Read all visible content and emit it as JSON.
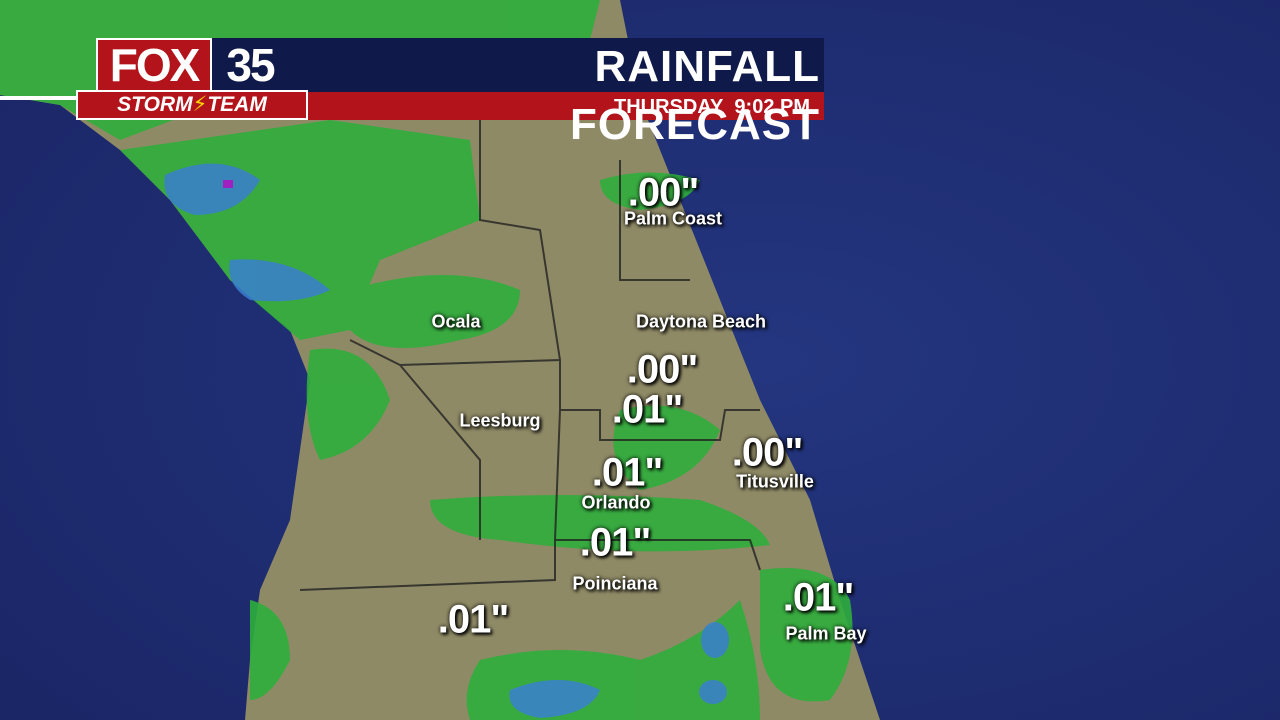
{
  "header": {
    "logo_brand": "FOX",
    "logo_number": "35",
    "logo_team": [
      "STORM",
      "TEAM"
    ],
    "title": "RAINFALL FORECAST",
    "day": "THURSDAY",
    "time": "9:02 PM"
  },
  "places": [
    {
      "amount": ".00\"",
      "name": "Palm Coast"
    },
    {
      "name": "Daytona Beach"
    },
    {
      "name": "Ocala"
    },
    {
      "amount": ".00\""
    },
    {
      "amount": ".01\""
    },
    {
      "name": "Leesburg"
    },
    {
      "amount": ".01\"",
      "name": "Orlando"
    },
    {
      "amount": ".00\"",
      "name": "Titusville"
    },
    {
      "amount": ".01\"",
      "name": "Poinciana"
    },
    {
      "amount": ".01\""
    },
    {
      "amount": ".01\"",
      "name": "Palm Bay"
    }
  ]
}
